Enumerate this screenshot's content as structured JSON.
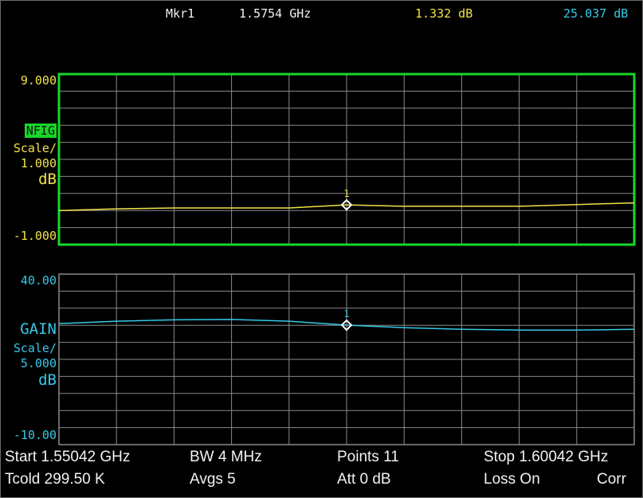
{
  "header": {
    "marker_label": "Mkr1",
    "marker_freq": "1.5754 GHz",
    "marker_nfig": "1.332 dB",
    "marker_gain": "25.037 dB"
  },
  "colors": {
    "nfig_trace": "#f1e24a",
    "gain_trace": "#36c8e8",
    "active_border": "#18d62a",
    "inactive_border": "#8a8a8a",
    "grid": "#8a8a8a"
  },
  "upper_plot": {
    "top_value": "9.000",
    "bottom_value": "-1.000",
    "param": "NFIG",
    "scale_label": "Scale/",
    "scale_value": "1.000",
    "unit": "dB",
    "marker_num": "1"
  },
  "lower_plot": {
    "top_value": "40.00",
    "bottom_value": "-10.00",
    "param": "GAIN",
    "scale_label": "Scale/",
    "scale_value": "5.000",
    "unit": "dB",
    "marker_num": "1"
  },
  "footer": {
    "start": "Start 1.55042 GHz",
    "bw": "BW 4 MHz",
    "points": "Points 11",
    "stop": "Stop 1.60042 GHz",
    "tcold": "Tcold 299.50 K",
    "avgs": "Avgs 5",
    "att": "Att 0 dB",
    "loss": "Loss On",
    "corr": "Corr"
  },
  "chart_data": [
    {
      "type": "line",
      "series": [
        {
          "name": "NFIG",
          "x": [
            0,
            1,
            2,
            3,
            4,
            5,
            6,
            7,
            8,
            9,
            10
          ],
          "values": [
            1.0,
            1.1,
            1.15,
            1.15,
            1.15,
            1.332,
            1.25,
            1.25,
            1.25,
            1.35,
            1.45
          ]
        }
      ],
      "ylim": [
        -1.0,
        9.0
      ],
      "grid": true,
      "marker": {
        "index": 5,
        "value": 1.332
      }
    },
    {
      "type": "line",
      "series": [
        {
          "name": "GAIN",
          "x": [
            0,
            1,
            2,
            3,
            4,
            5,
            6,
            7,
            8,
            9,
            10
          ],
          "values": [
            25.5,
            26.2,
            26.6,
            26.7,
            26.2,
            25.037,
            24.3,
            23.8,
            23.6,
            23.6,
            23.8
          ]
        }
      ],
      "ylim": [
        -10.0,
        40.0
      ],
      "grid": true,
      "marker": {
        "index": 5,
        "value": 25.037
      }
    }
  ]
}
